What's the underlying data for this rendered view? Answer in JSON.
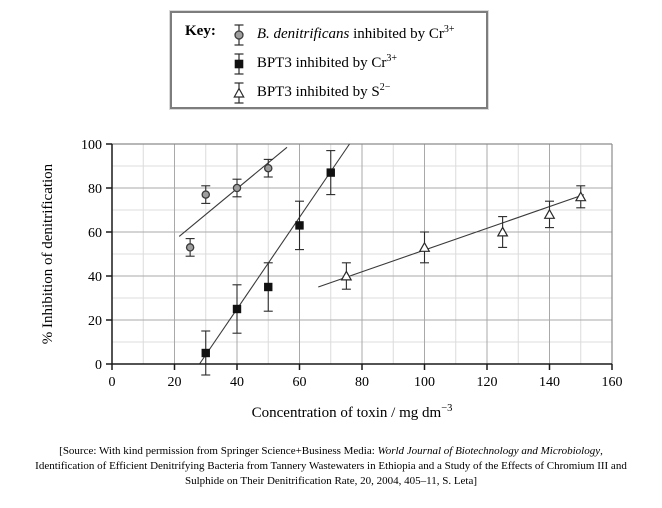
{
  "key": {
    "title": "Key:",
    "entries": [
      {
        "marker": "gray-circle",
        "italic": "B. denitrificans",
        "text": " inhibited by Cr",
        "sup": "3+"
      },
      {
        "marker": "black-square",
        "italic": "",
        "text": "BPT3 inhibited by Cr",
        "sup": "3+"
      },
      {
        "marker": "open-triangle",
        "italic": "",
        "text": "BPT3 inhibited by S",
        "sup": "2−"
      }
    ]
  },
  "chart_data": {
    "type": "scatter",
    "title": "",
    "xlabel": {
      "text": "Concentration of toxin / mg dm",
      "sup": "−3"
    },
    "ylabel": "% Inhibition of denitrification",
    "xlim": [
      0,
      160
    ],
    "ylim": [
      0,
      100
    ],
    "x_ticks": [
      0,
      20,
      40,
      60,
      80,
      100,
      120,
      140,
      160
    ],
    "y_ticks": [
      0,
      20,
      40,
      60,
      80,
      100
    ],
    "grid": {
      "on": true,
      "minor_step": 10,
      "major_step": 20
    },
    "legend_position": "top-outside",
    "colors": {
      "grid_minor": "#dcdcdc",
      "grid_major": "#a9a9a9",
      "plot_border": "#8c8c8c",
      "axis": "#1a1a1a",
      "tick_text": "#000000",
      "error_bar": "#2a2a2a",
      "trend_line": "#3a3a3a"
    },
    "series": [
      {
        "name": "B. denitrificans inhibited by Cr3+",
        "marker": "circle",
        "marker_fill": "#9e9e9e",
        "marker_stroke": "#3a3a3a",
        "points": [
          {
            "x": 25,
            "y": 53,
            "err": 4
          },
          {
            "x": 30,
            "y": 77,
            "err": 4
          },
          {
            "x": 40,
            "y": 80,
            "err": 4
          },
          {
            "x": 50,
            "y": 89,
            "err": 4
          }
        ],
        "trendline": {
          "x1": 21.5,
          "y1": 58,
          "x2": 56,
          "y2": 98.5
        }
      },
      {
        "name": "BPT3 inhibited by Cr3+",
        "marker": "square",
        "marker_fill": "#111111",
        "marker_stroke": "#111111",
        "points": [
          {
            "x": 30,
            "y": 5,
            "err": 10
          },
          {
            "x": 40,
            "y": 25,
            "err": 11
          },
          {
            "x": 50,
            "y": 35,
            "err": 11
          },
          {
            "x": 60,
            "y": 63,
            "err": 11
          },
          {
            "x": 70,
            "y": 87,
            "err": 10
          }
        ],
        "trendline": {
          "x1": 28,
          "y1": 0,
          "x2": 76,
          "y2": 100
        }
      },
      {
        "name": "BPT3 inhibited by S2−",
        "marker": "triangle",
        "marker_fill": "#ffffff",
        "marker_stroke": "#2a2a2a",
        "points": [
          {
            "x": 75,
            "y": 40,
            "err": 6
          },
          {
            "x": 100,
            "y": 53,
            "err": 7
          },
          {
            "x": 125,
            "y": 60,
            "err": 7
          },
          {
            "x": 140,
            "y": 68,
            "err": 6
          },
          {
            "x": 150,
            "y": 76,
            "err": 5
          }
        ],
        "trendline": {
          "x1": 66,
          "y1": 35,
          "x2": 151,
          "y2": 77
        }
      }
    ]
  },
  "source": {
    "line1_prefix": "[Source: With kind permission from Springer Science+Business Media: ",
    "line1_italic": "World Journal of Biotechnology and Microbiology",
    "line1_suffix": ",",
    "line2": "Identification of Efficient Denitrifying Bacteria from Tannery Wastewaters in Ethiopia and a Study of the Effects of Chromium III and",
    "line3": "Sulphide on Their Denitrification Rate, 20, 2004, 405–11, S. Leta]"
  }
}
